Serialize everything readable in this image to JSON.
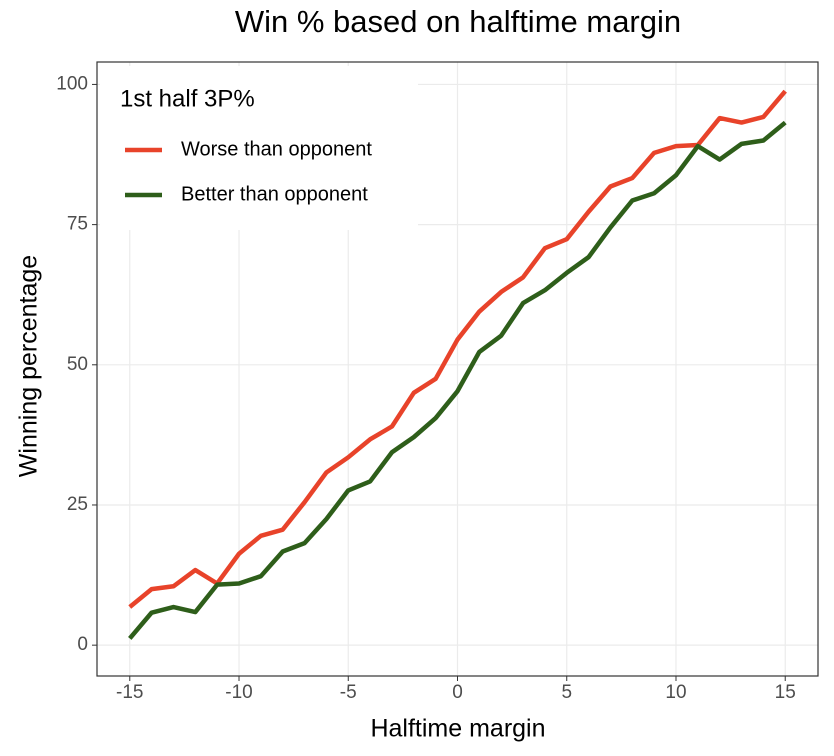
{
  "chart_data": {
    "type": "line",
    "title": "Win % based on halftime margin",
    "x_label": "Halftime margin",
    "y_label": "Winning percentage",
    "x": [
      -15,
      -14,
      -13,
      -12,
      -11,
      -10,
      -9,
      -8,
      -7,
      -6,
      -5,
      -4,
      -3,
      -2,
      -1,
      0,
      1,
      2,
      3,
      4,
      5,
      6,
      7,
      8,
      9,
      10,
      11,
      12,
      13,
      14,
      15
    ],
    "series": [
      {
        "name": "Worse than opponent",
        "color": "#e8432a",
        "values": [
          6.8,
          10,
          10.5,
          13.4,
          11,
          16.3,
          19.5,
          20.6,
          25.5,
          30.8,
          33.5,
          36.7,
          39,
          45,
          47.5,
          54.5,
          59.5,
          63,
          65.6,
          70.8,
          72.4,
          77.3,
          81.8,
          83.3,
          87.8,
          89,
          89.2,
          94,
          93.2,
          94.2,
          98.8
        ]
      },
      {
        "name": "Better than opponent",
        "color": "#2e5e1a",
        "values": [
          1.2,
          5.8,
          6.8,
          5.9,
          10.8,
          11,
          12.3,
          16.7,
          18.2,
          22.5,
          27.6,
          29.2,
          34.4,
          37.1,
          40.5,
          45.3,
          52.3,
          55.2,
          61,
          63.3,
          66.4,
          69.2,
          74.5,
          79.3,
          80.6,
          83.8,
          89,
          86.6,
          89.4,
          90,
          93.2
        ]
      }
    ],
    "legend_title": "1st half 3P%",
    "legend_position": "top-left",
    "xlim": [
      -16.5,
      16.5
    ],
    "xticks": [
      -15,
      -10,
      -5,
      0,
      5,
      10,
      15
    ],
    "ylim": [
      -5.5,
      104
    ],
    "yticks": [
      0,
      25,
      50,
      75,
      100
    ],
    "grid": true
  }
}
